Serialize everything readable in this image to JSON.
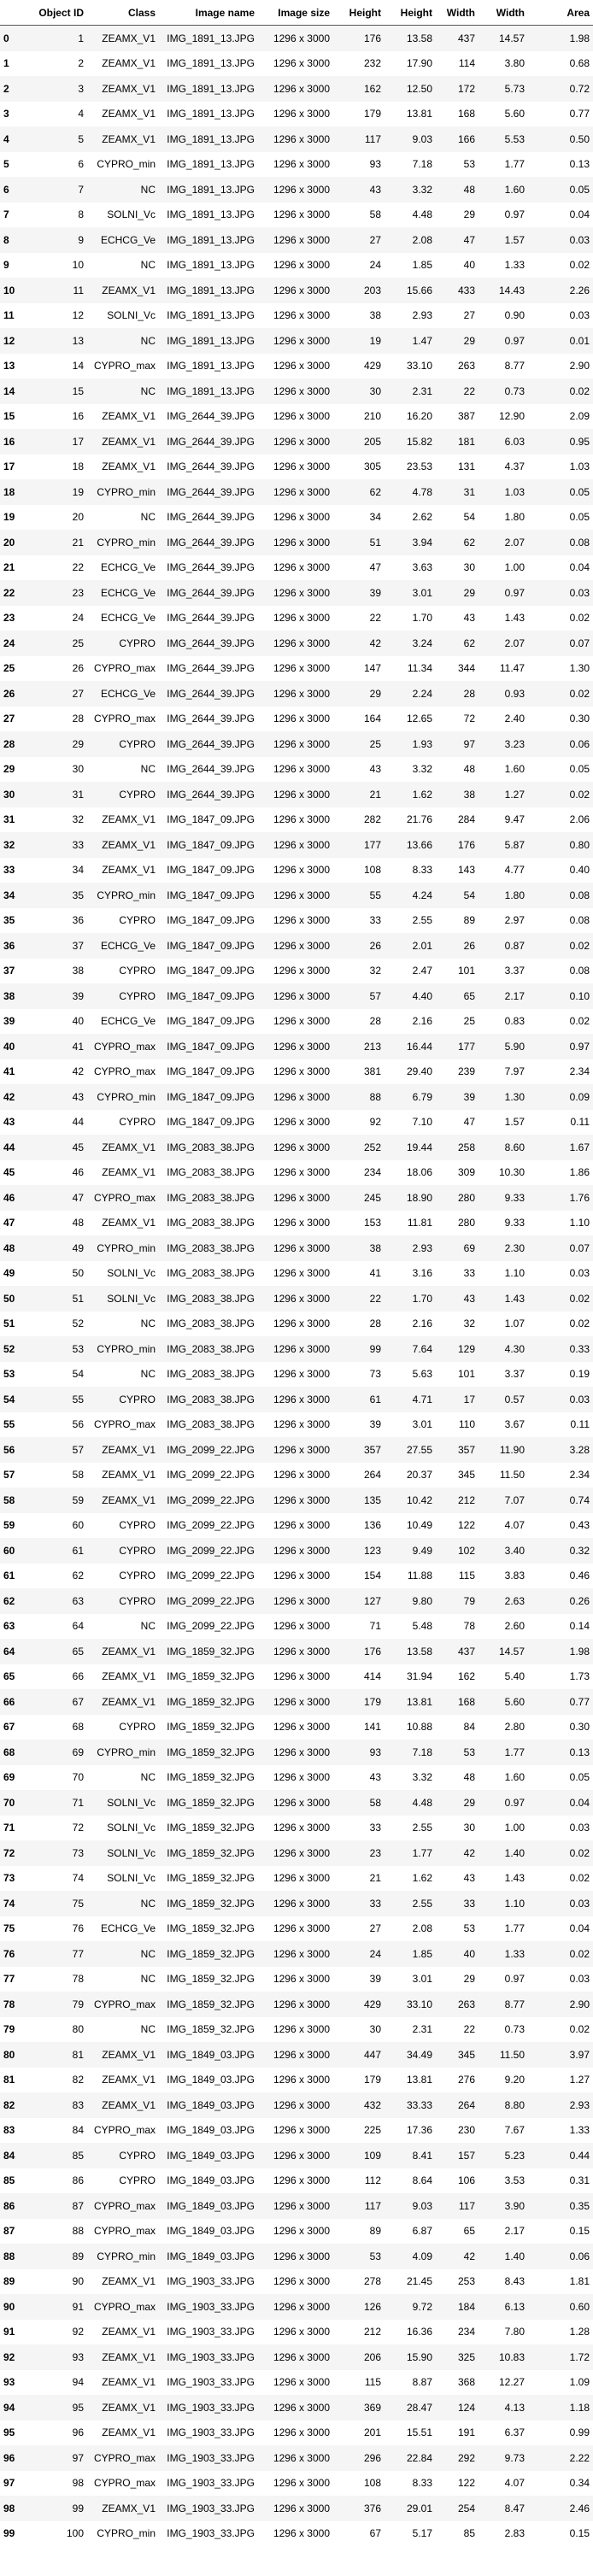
{
  "table": {
    "columns": [
      "",
      "Object ID",
      "Class",
      "Image name",
      "Image size",
      "Height",
      "Height",
      "Width",
      "Width",
      "Area"
    ],
    "rows": [
      [
        "0",
        "1",
        "ZEAMX_V1",
        "IMG_1891_13.JPG",
        "1296 x 3000",
        "176",
        "13.58",
        "437",
        "14.57",
        "1.98"
      ],
      [
        "1",
        "2",
        "ZEAMX_V1",
        "IMG_1891_13.JPG",
        "1296 x 3000",
        "232",
        "17.90",
        "114",
        "3.80",
        "0.68"
      ],
      [
        "2",
        "3",
        "ZEAMX_V1",
        "IMG_1891_13.JPG",
        "1296 x 3000",
        "162",
        "12.50",
        "172",
        "5.73",
        "0.72"
      ],
      [
        "3",
        "4",
        "ZEAMX_V1",
        "IMG_1891_13.JPG",
        "1296 x 3000",
        "179",
        "13.81",
        "168",
        "5.60",
        "0.77"
      ],
      [
        "4",
        "5",
        "ZEAMX_V1",
        "IMG_1891_13.JPG",
        "1296 x 3000",
        "117",
        "9.03",
        "166",
        "5.53",
        "0.50"
      ],
      [
        "5",
        "6",
        "CYPRO_min",
        "IMG_1891_13.JPG",
        "1296 x 3000",
        "93",
        "7.18",
        "53",
        "1.77",
        "0.13"
      ],
      [
        "6",
        "7",
        "NC",
        "IMG_1891_13.JPG",
        "1296 x 3000",
        "43",
        "3.32",
        "48",
        "1.60",
        "0.05"
      ],
      [
        "7",
        "8",
        "SOLNI_Vc",
        "IMG_1891_13.JPG",
        "1296 x 3000",
        "58",
        "4.48",
        "29",
        "0.97",
        "0.04"
      ],
      [
        "8",
        "9",
        "ECHCG_Ve",
        "IMG_1891_13.JPG",
        "1296 x 3000",
        "27",
        "2.08",
        "47",
        "1.57",
        "0.03"
      ],
      [
        "9",
        "10",
        "NC",
        "IMG_1891_13.JPG",
        "1296 x 3000",
        "24",
        "1.85",
        "40",
        "1.33",
        "0.02"
      ],
      [
        "10",
        "11",
        "ZEAMX_V1",
        "IMG_1891_13.JPG",
        "1296 x 3000",
        "203",
        "15.66",
        "433",
        "14.43",
        "2.26"
      ],
      [
        "11",
        "12",
        "SOLNI_Vc",
        "IMG_1891_13.JPG",
        "1296 x 3000",
        "38",
        "2.93",
        "27",
        "0.90",
        "0.03"
      ],
      [
        "12",
        "13",
        "NC",
        "IMG_1891_13.JPG",
        "1296 x 3000",
        "19",
        "1.47",
        "29",
        "0.97",
        "0.01"
      ],
      [
        "13",
        "14",
        "CYPRO_max",
        "IMG_1891_13.JPG",
        "1296 x 3000",
        "429",
        "33.10",
        "263",
        "8.77",
        "2.90"
      ],
      [
        "14",
        "15",
        "NC",
        "IMG_1891_13.JPG",
        "1296 x 3000",
        "30",
        "2.31",
        "22",
        "0.73",
        "0.02"
      ],
      [
        "15",
        "16",
        "ZEAMX_V1",
        "IMG_2644_39.JPG",
        "1296 x 3000",
        "210",
        "16.20",
        "387",
        "12.90",
        "2.09"
      ],
      [
        "16",
        "17",
        "ZEAMX_V1",
        "IMG_2644_39.JPG",
        "1296 x 3000",
        "205",
        "15.82",
        "181",
        "6.03",
        "0.95"
      ],
      [
        "17",
        "18",
        "ZEAMX_V1",
        "IMG_2644_39.JPG",
        "1296 x 3000",
        "305",
        "23.53",
        "131",
        "4.37",
        "1.03"
      ],
      [
        "18",
        "19",
        "CYPRO_min",
        "IMG_2644_39.JPG",
        "1296 x 3000",
        "62",
        "4.78",
        "31",
        "1.03",
        "0.05"
      ],
      [
        "19",
        "20",
        "NC",
        "IMG_2644_39.JPG",
        "1296 x 3000",
        "34",
        "2.62",
        "54",
        "1.80",
        "0.05"
      ],
      [
        "20",
        "21",
        "CYPRO_min",
        "IMG_2644_39.JPG",
        "1296 x 3000",
        "51",
        "3.94",
        "62",
        "2.07",
        "0.08"
      ],
      [
        "21",
        "22",
        "ECHCG_Ve",
        "IMG_2644_39.JPG",
        "1296 x 3000",
        "47",
        "3.63",
        "30",
        "1.00",
        "0.04"
      ],
      [
        "22",
        "23",
        "ECHCG_Ve",
        "IMG_2644_39.JPG",
        "1296 x 3000",
        "39",
        "3.01",
        "29",
        "0.97",
        "0.03"
      ],
      [
        "23",
        "24",
        "ECHCG_Ve",
        "IMG_2644_39.JPG",
        "1296 x 3000",
        "22",
        "1.70",
        "43",
        "1.43",
        "0.02"
      ],
      [
        "24",
        "25",
        "CYPRO",
        "IMG_2644_39.JPG",
        "1296 x 3000",
        "42",
        "3.24",
        "62",
        "2.07",
        "0.07"
      ],
      [
        "25",
        "26",
        "CYPRO_max",
        "IMG_2644_39.JPG",
        "1296 x 3000",
        "147",
        "11.34",
        "344",
        "11.47",
        "1.30"
      ],
      [
        "26",
        "27",
        "ECHCG_Ve",
        "IMG_2644_39.JPG",
        "1296 x 3000",
        "29",
        "2.24",
        "28",
        "0.93",
        "0.02"
      ],
      [
        "27",
        "28",
        "CYPRO_max",
        "IMG_2644_39.JPG",
        "1296 x 3000",
        "164",
        "12.65",
        "72",
        "2.40",
        "0.30"
      ],
      [
        "28",
        "29",
        "CYPRO",
        "IMG_2644_39.JPG",
        "1296 x 3000",
        "25",
        "1.93",
        "97",
        "3.23",
        "0.06"
      ],
      [
        "29",
        "30",
        "NC",
        "IMG_2644_39.JPG",
        "1296 x 3000",
        "43",
        "3.32",
        "48",
        "1.60",
        "0.05"
      ],
      [
        "30",
        "31",
        "CYPRO",
        "IMG_2644_39.JPG",
        "1296 x 3000",
        "21",
        "1.62",
        "38",
        "1.27",
        "0.02"
      ],
      [
        "31",
        "32",
        "ZEAMX_V1",
        "IMG_1847_09.JPG",
        "1296 x 3000",
        "282",
        "21.76",
        "284",
        "9.47",
        "2.06"
      ],
      [
        "32",
        "33",
        "ZEAMX_V1",
        "IMG_1847_09.JPG",
        "1296 x 3000",
        "177",
        "13.66",
        "176",
        "5.87",
        "0.80"
      ],
      [
        "33",
        "34",
        "ZEAMX_V1",
        "IMG_1847_09.JPG",
        "1296 x 3000",
        "108",
        "8.33",
        "143",
        "4.77",
        "0.40"
      ],
      [
        "34",
        "35",
        "CYPRO_min",
        "IMG_1847_09.JPG",
        "1296 x 3000",
        "55",
        "4.24",
        "54",
        "1.80",
        "0.08"
      ],
      [
        "35",
        "36",
        "CYPRO",
        "IMG_1847_09.JPG",
        "1296 x 3000",
        "33",
        "2.55",
        "89",
        "2.97",
        "0.08"
      ],
      [
        "36",
        "37",
        "ECHCG_Ve",
        "IMG_1847_09.JPG",
        "1296 x 3000",
        "26",
        "2.01",
        "26",
        "0.87",
        "0.02"
      ],
      [
        "37",
        "38",
        "CYPRO",
        "IMG_1847_09.JPG",
        "1296 x 3000",
        "32",
        "2.47",
        "101",
        "3.37",
        "0.08"
      ],
      [
        "38",
        "39",
        "CYPRO",
        "IMG_1847_09.JPG",
        "1296 x 3000",
        "57",
        "4.40",
        "65",
        "2.17",
        "0.10"
      ],
      [
        "39",
        "40",
        "ECHCG_Ve",
        "IMG_1847_09.JPG",
        "1296 x 3000",
        "28",
        "2.16",
        "25",
        "0.83",
        "0.02"
      ],
      [
        "40",
        "41",
        "CYPRO_max",
        "IMG_1847_09.JPG",
        "1296 x 3000",
        "213",
        "16.44",
        "177",
        "5.90",
        "0.97"
      ],
      [
        "41",
        "42",
        "CYPRO_max",
        "IMG_1847_09.JPG",
        "1296 x 3000",
        "381",
        "29.40",
        "239",
        "7.97",
        "2.34"
      ],
      [
        "42",
        "43",
        "CYPRO_min",
        "IMG_1847_09.JPG",
        "1296 x 3000",
        "88",
        "6.79",
        "39",
        "1.30",
        "0.09"
      ],
      [
        "43",
        "44",
        "CYPRO",
        "IMG_1847_09.JPG",
        "1296 x 3000",
        "92",
        "7.10",
        "47",
        "1.57",
        "0.11"
      ],
      [
        "44",
        "45",
        "ZEAMX_V1",
        "IMG_2083_38.JPG",
        "1296 x 3000",
        "252",
        "19.44",
        "258",
        "8.60",
        "1.67"
      ],
      [
        "45",
        "46",
        "ZEAMX_V1",
        "IMG_2083_38.JPG",
        "1296 x 3000",
        "234",
        "18.06",
        "309",
        "10.30",
        "1.86"
      ],
      [
        "46",
        "47",
        "CYPRO_max",
        "IMG_2083_38.JPG",
        "1296 x 3000",
        "245",
        "18.90",
        "280",
        "9.33",
        "1.76"
      ],
      [
        "47",
        "48",
        "ZEAMX_V1",
        "IMG_2083_38.JPG",
        "1296 x 3000",
        "153",
        "11.81",
        "280",
        "9.33",
        "1.10"
      ],
      [
        "48",
        "49",
        "CYPRO_min",
        "IMG_2083_38.JPG",
        "1296 x 3000",
        "38",
        "2.93",
        "69",
        "2.30",
        "0.07"
      ],
      [
        "49",
        "50",
        "SOLNI_Vc",
        "IMG_2083_38.JPG",
        "1296 x 3000",
        "41",
        "3.16",
        "33",
        "1.10",
        "0.03"
      ],
      [
        "50",
        "51",
        "SOLNI_Vc",
        "IMG_2083_38.JPG",
        "1296 x 3000",
        "22",
        "1.70",
        "43",
        "1.43",
        "0.02"
      ],
      [
        "51",
        "52",
        "NC",
        "IMG_2083_38.JPG",
        "1296 x 3000",
        "28",
        "2.16",
        "32",
        "1.07",
        "0.02"
      ],
      [
        "52",
        "53",
        "CYPRO_min",
        "IMG_2083_38.JPG",
        "1296 x 3000",
        "99",
        "7.64",
        "129",
        "4.30",
        "0.33"
      ],
      [
        "53",
        "54",
        "NC",
        "IMG_2083_38.JPG",
        "1296 x 3000",
        "73",
        "5.63",
        "101",
        "3.37",
        "0.19"
      ],
      [
        "54",
        "55",
        "CYPRO",
        "IMG_2083_38.JPG",
        "1296 x 3000",
        "61",
        "4.71",
        "17",
        "0.57",
        "0.03"
      ],
      [
        "55",
        "56",
        "CYPRO_max",
        "IMG_2083_38.JPG",
        "1296 x 3000",
        "39",
        "3.01",
        "110",
        "3.67",
        "0.11"
      ],
      [
        "56",
        "57",
        "ZEAMX_V1",
        "IMG_2099_22.JPG",
        "1296 x 3000",
        "357",
        "27.55",
        "357",
        "11.90",
        "3.28"
      ],
      [
        "57",
        "58",
        "ZEAMX_V1",
        "IMG_2099_22.JPG",
        "1296 x 3000",
        "264",
        "20.37",
        "345",
        "11.50",
        "2.34"
      ],
      [
        "58",
        "59",
        "ZEAMX_V1",
        "IMG_2099_22.JPG",
        "1296 x 3000",
        "135",
        "10.42",
        "212",
        "7.07",
        "0.74"
      ],
      [
        "59",
        "60",
        "CYPRO",
        "IMG_2099_22.JPG",
        "1296 x 3000",
        "136",
        "10.49",
        "122",
        "4.07",
        "0.43"
      ],
      [
        "60",
        "61",
        "CYPRO",
        "IMG_2099_22.JPG",
        "1296 x 3000",
        "123",
        "9.49",
        "102",
        "3.40",
        "0.32"
      ],
      [
        "61",
        "62",
        "CYPRO",
        "IMG_2099_22.JPG",
        "1296 x 3000",
        "154",
        "11.88",
        "115",
        "3.83",
        "0.46"
      ],
      [
        "62",
        "63",
        "CYPRO",
        "IMG_2099_22.JPG",
        "1296 x 3000",
        "127",
        "9.80",
        "79",
        "2.63",
        "0.26"
      ],
      [
        "63",
        "64",
        "NC",
        "IMG_2099_22.JPG",
        "1296 x 3000",
        "71",
        "5.48",
        "78",
        "2.60",
        "0.14"
      ],
      [
        "64",
        "65",
        "ZEAMX_V1",
        "IMG_1859_32.JPG",
        "1296 x 3000",
        "176",
        "13.58",
        "437",
        "14.57",
        "1.98"
      ],
      [
        "65",
        "66",
        "ZEAMX_V1",
        "IMG_1859_32.JPG",
        "1296 x 3000",
        "414",
        "31.94",
        "162",
        "5.40",
        "1.73"
      ],
      [
        "66",
        "67",
        "ZEAMX_V1",
        "IMG_1859_32.JPG",
        "1296 x 3000",
        "179",
        "13.81",
        "168",
        "5.60",
        "0.77"
      ],
      [
        "67",
        "68",
        "CYPRO",
        "IMG_1859_32.JPG",
        "1296 x 3000",
        "141",
        "10.88",
        "84",
        "2.80",
        "0.30"
      ],
      [
        "68",
        "69",
        "CYPRO_min",
        "IMG_1859_32.JPG",
        "1296 x 3000",
        "93",
        "7.18",
        "53",
        "1.77",
        "0.13"
      ],
      [
        "69",
        "70",
        "NC",
        "IMG_1859_32.JPG",
        "1296 x 3000",
        "43",
        "3.32",
        "48",
        "1.60",
        "0.05"
      ],
      [
        "70",
        "71",
        "SOLNI_Vc",
        "IMG_1859_32.JPG",
        "1296 x 3000",
        "58",
        "4.48",
        "29",
        "0.97",
        "0.04"
      ],
      [
        "71",
        "72",
        "SOLNI_Vc",
        "IMG_1859_32.JPG",
        "1296 x 3000",
        "33",
        "2.55",
        "30",
        "1.00",
        "0.03"
      ],
      [
        "72",
        "73",
        "SOLNI_Vc",
        "IMG_1859_32.JPG",
        "1296 x 3000",
        "23",
        "1.77",
        "42",
        "1.40",
        "0.02"
      ],
      [
        "73",
        "74",
        "SOLNI_Vc",
        "IMG_1859_32.JPG",
        "1296 x 3000",
        "21",
        "1.62",
        "43",
        "1.43",
        "0.02"
      ],
      [
        "74",
        "75",
        "NC",
        "IMG_1859_32.JPG",
        "1296 x 3000",
        "33",
        "2.55",
        "33",
        "1.10",
        "0.03"
      ],
      [
        "75",
        "76",
        "ECHCG_Ve",
        "IMG_1859_32.JPG",
        "1296 x 3000",
        "27",
        "2.08",
        "53",
        "1.77",
        "0.04"
      ],
      [
        "76",
        "77",
        "NC",
        "IMG_1859_32.JPG",
        "1296 x 3000",
        "24",
        "1.85",
        "40",
        "1.33",
        "0.02"
      ],
      [
        "77",
        "78",
        "NC",
        "IMG_1859_32.JPG",
        "1296 x 3000",
        "39",
        "3.01",
        "29",
        "0.97",
        "0.03"
      ],
      [
        "78",
        "79",
        "CYPRO_max",
        "IMG_1859_32.JPG",
        "1296 x 3000",
        "429",
        "33.10",
        "263",
        "8.77",
        "2.90"
      ],
      [
        "79",
        "80",
        "NC",
        "IMG_1859_32.JPG",
        "1296 x 3000",
        "30",
        "2.31",
        "22",
        "0.73",
        "0.02"
      ],
      [
        "80",
        "81",
        "ZEAMX_V1",
        "IMG_1849_03.JPG",
        "1296 x 3000",
        "447",
        "34.49",
        "345",
        "11.50",
        "3.97"
      ],
      [
        "81",
        "82",
        "ZEAMX_V1",
        "IMG_1849_03.JPG",
        "1296 x 3000",
        "179",
        "13.81",
        "276",
        "9.20",
        "1.27"
      ],
      [
        "82",
        "83",
        "ZEAMX_V1",
        "IMG_1849_03.JPG",
        "1296 x 3000",
        "432",
        "33.33",
        "264",
        "8.80",
        "2.93"
      ],
      [
        "83",
        "84",
        "CYPRO_max",
        "IMG_1849_03.JPG",
        "1296 x 3000",
        "225",
        "17.36",
        "230",
        "7.67",
        "1.33"
      ],
      [
        "84",
        "85",
        "CYPRO",
        "IMG_1849_03.JPG",
        "1296 x 3000",
        "109",
        "8.41",
        "157",
        "5.23",
        "0.44"
      ],
      [
        "85",
        "86",
        "CYPRO",
        "IMG_1849_03.JPG",
        "1296 x 3000",
        "112",
        "8.64",
        "106",
        "3.53",
        "0.31"
      ],
      [
        "86",
        "87",
        "CYPRO_max",
        "IMG_1849_03.JPG",
        "1296 x 3000",
        "117",
        "9.03",
        "117",
        "3.90",
        "0.35"
      ],
      [
        "87",
        "88",
        "CYPRO_max",
        "IMG_1849_03.JPG",
        "1296 x 3000",
        "89",
        "6.87",
        "65",
        "2.17",
        "0.15"
      ],
      [
        "88",
        "89",
        "CYPRO_min",
        "IMG_1849_03.JPG",
        "1296 x 3000",
        "53",
        "4.09",
        "42",
        "1.40",
        "0.06"
      ],
      [
        "89",
        "90",
        "ZEAMX_V1",
        "IMG_1903_33.JPG",
        "1296 x 3000",
        "278",
        "21.45",
        "253",
        "8.43",
        "1.81"
      ],
      [
        "90",
        "91",
        "CYPRO_max",
        "IMG_1903_33.JPG",
        "1296 x 3000",
        "126",
        "9.72",
        "184",
        "6.13",
        "0.60"
      ],
      [
        "91",
        "92",
        "ZEAMX_V1",
        "IMG_1903_33.JPG",
        "1296 x 3000",
        "212",
        "16.36",
        "234",
        "7.80",
        "1.28"
      ],
      [
        "92",
        "93",
        "ZEAMX_V1",
        "IMG_1903_33.JPG",
        "1296 x 3000",
        "206",
        "15.90",
        "325",
        "10.83",
        "1.72"
      ],
      [
        "93",
        "94",
        "ZEAMX_V1",
        "IMG_1903_33.JPG",
        "1296 x 3000",
        "115",
        "8.87",
        "368",
        "12.27",
        "1.09"
      ],
      [
        "94",
        "95",
        "ZEAMX_V1",
        "IMG_1903_33.JPG",
        "1296 x 3000",
        "369",
        "28.47",
        "124",
        "4.13",
        "1.18"
      ],
      [
        "95",
        "96",
        "ZEAMX_V1",
        "IMG_1903_33.JPG",
        "1296 x 3000",
        "201",
        "15.51",
        "191",
        "6.37",
        "0.99"
      ],
      [
        "96",
        "97",
        "CYPRO_max",
        "IMG_1903_33.JPG",
        "1296 x 3000",
        "296",
        "22.84",
        "292",
        "9.73",
        "2.22"
      ],
      [
        "97",
        "98",
        "CYPRO_max",
        "IMG_1903_33.JPG",
        "1296 x 3000",
        "108",
        "8.33",
        "122",
        "4.07",
        "0.34"
      ],
      [
        "98",
        "99",
        "ZEAMX_V1",
        "IMG_1903_33.JPG",
        "1296 x 3000",
        "376",
        "29.01",
        "254",
        "8.47",
        "2.46"
      ],
      [
        "99",
        "100",
        "CYPRO_min",
        "IMG_1903_33.JPG",
        "1296 x 3000",
        "67",
        "5.17",
        "85",
        "2.83",
        "0.15"
      ]
    ]
  }
}
